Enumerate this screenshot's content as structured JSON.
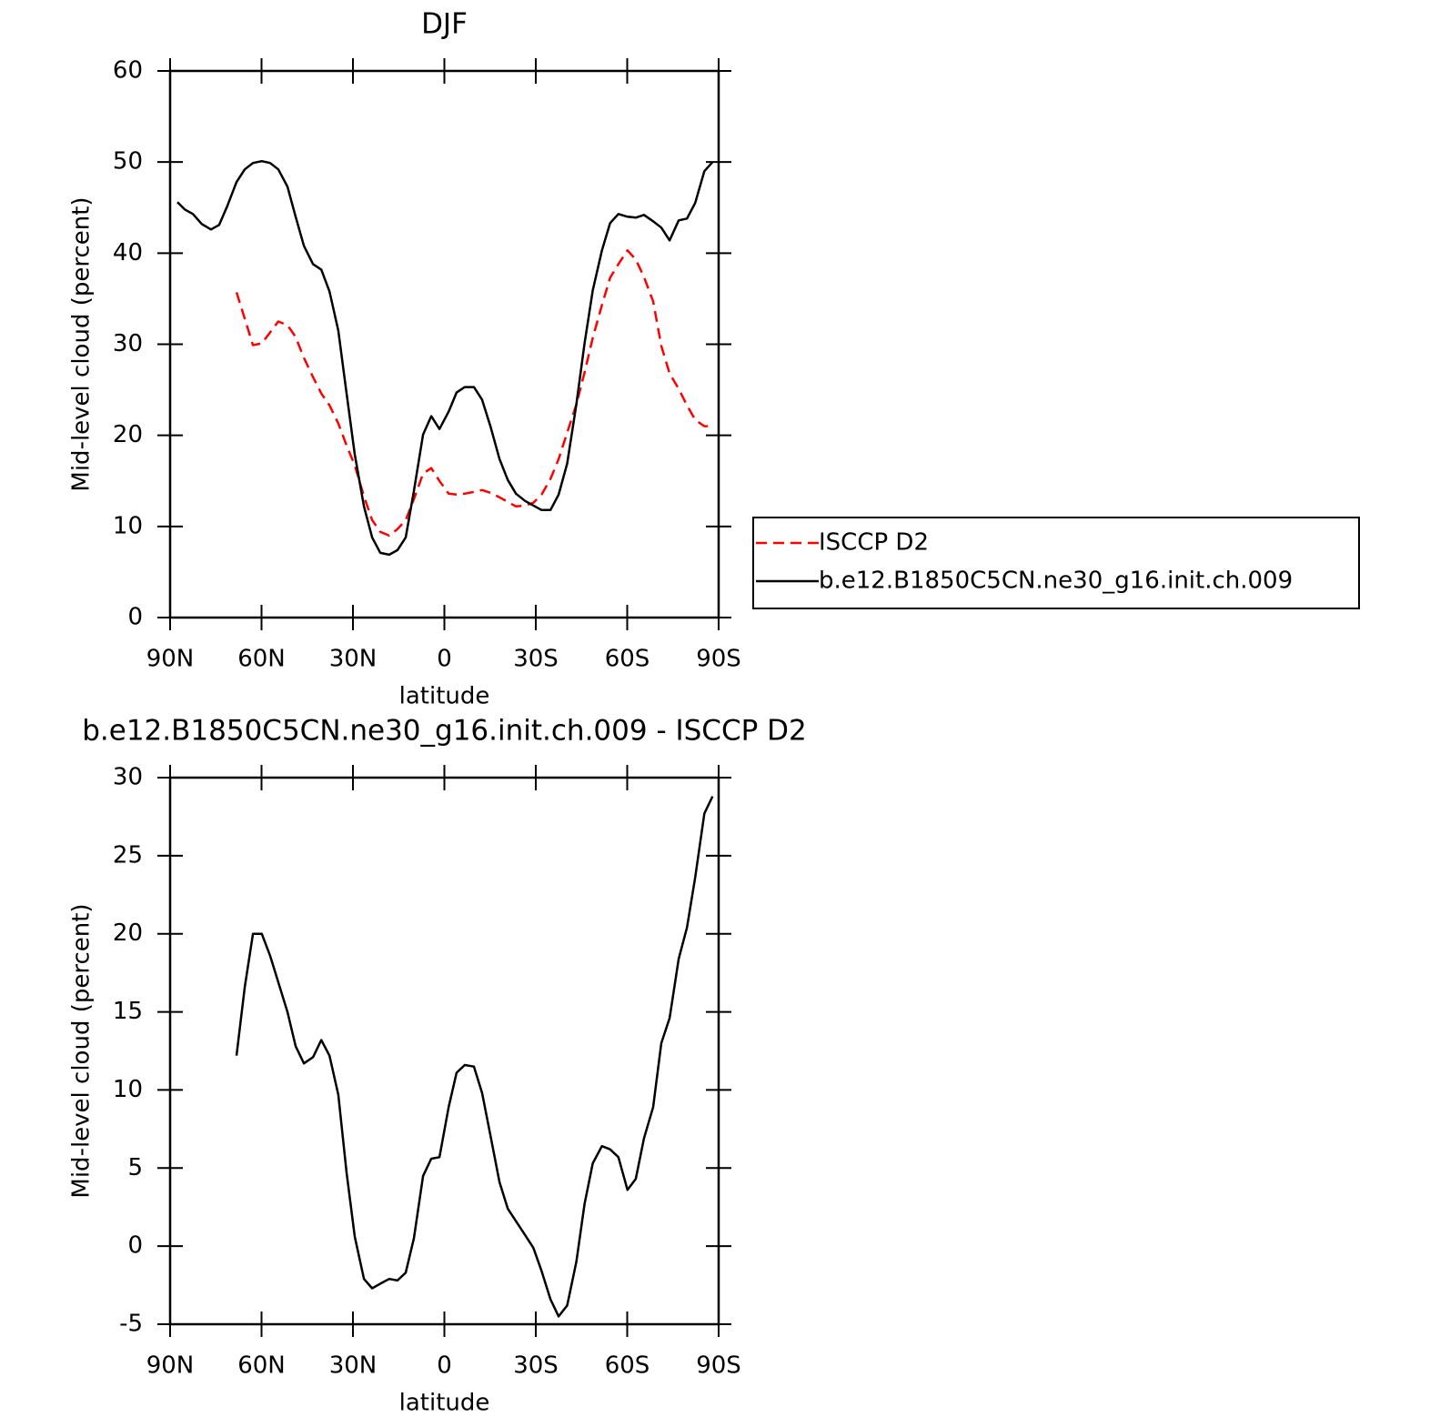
{
  "chart_data": [
    {
      "type": "line",
      "title": "DJF",
      "xlabel": "latitude",
      "ylabel": "Mid-level cloud (percent)",
      "x": [
        87.6,
        85.2,
        82.5,
        79.6,
        76.6,
        73.9,
        71.2,
        68.2,
        65.5,
        62.8,
        59.9,
        57.2,
        54.5,
        51.5,
        48.8,
        46.1,
        43.1,
        40.4,
        37.7,
        34.8,
        32.1,
        29.4,
        26.4,
        23.7,
        21.0,
        18.1,
        15.4,
        12.7,
        10.0,
        7.0,
        4.3,
        1.6,
        -1.4,
        -4.0,
        -6.7,
        -9.7,
        -12.4,
        -15.1,
        -18.1,
        -20.8,
        -23.5,
        -26.5,
        -29.2,
        -31.9,
        -34.8,
        -37.5,
        -40.3,
        -43.3,
        -46.0,
        -48.7,
        -51.7,
        -54.4,
        -57.1,
        -60.1,
        -62.8,
        -65.5,
        -68.5,
        -71.2,
        -73.9,
        -76.9,
        -79.6,
        -82.3,
        -85.3,
        -88.0
      ],
      "series": [
        {
          "name": "ISCCP D2",
          "color": "#ff0000",
          "line_style": "dashed",
          "values": [
            null,
            null,
            null,
            null,
            null,
            null,
            null,
            35.7,
            32.8,
            29.9,
            30.1,
            31.3,
            32.5,
            32.1,
            30.8,
            28.5,
            26.4,
            24.6,
            23.3,
            21.3,
            18.9,
            16.7,
            13.3,
            10.7,
            9.4,
            9.0,
            9.7,
            10.7,
            13.0,
            15.8,
            16.4,
            15.0,
            13.6,
            13.5,
            13.6,
            13.8,
            14.0,
            13.7,
            13.2,
            12.7,
            12.2,
            12.3,
            12.6,
            13.5,
            15.2,
            17.4,
            20.3,
            23.4,
            26.9,
            30.7,
            34.3,
            37.3,
            38.8,
            40.3,
            39.3,
            37.4,
            34.7,
            29.8,
            26.8,
            25.1,
            23.3,
            21.7,
            21.0,
            21.0
          ]
        },
        {
          "name": "b.e12.B1850C5CN.ne30_g16.init.ch.009",
          "color": "#000000",
          "line_style": "solid",
          "values": [
            45.6,
            44.8,
            44.3,
            43.2,
            42.6,
            43.1,
            45.2,
            47.8,
            49.2,
            49.9,
            50.1,
            49.9,
            49.2,
            47.3,
            44.0,
            40.8,
            38.8,
            38.2,
            35.8,
            31.5,
            24.6,
            17.9,
            12.2,
            8.8,
            7.1,
            6.9,
            7.4,
            8.8,
            13.9,
            20.1,
            22.1,
            20.7,
            22.6,
            24.7,
            25.3,
            25.3,
            23.9,
            21.0,
            17.4,
            15.1,
            13.6,
            12.8,
            12.3,
            11.8,
            11.8,
            13.5,
            16.9,
            23.4,
            30.1,
            35.9,
            40.3,
            43.3,
            44.3,
            44.0,
            43.9,
            44.2,
            43.5,
            42.8,
            41.4,
            43.6,
            43.8,
            45.5,
            49.0,
            50.0
          ]
        }
      ],
      "xlim": [
        90,
        -90
      ],
      "xticks": [
        {
          "value": 90,
          "label": "90N"
        },
        {
          "value": 60,
          "label": "60N"
        },
        {
          "value": 30,
          "label": "30N"
        },
        0,
        {
          "value": -30,
          "label": "30S"
        },
        {
          "value": -60,
          "label": "60S"
        },
        {
          "value": -90,
          "label": "90S"
        }
      ],
      "ylim": [
        0,
        60
      ],
      "yticks": [
        0,
        10,
        20,
        30,
        40,
        50,
        60
      ],
      "legend": "right"
    },
    {
      "type": "line",
      "title": "b.e12.B1850C5CN.ne30_g16.init.ch.009 - ISCCP D2",
      "xlabel": "latitude",
      "ylabel": "Mid-level cloud (percent)",
      "x": [
        87.6,
        85.2,
        82.5,
        79.6,
        76.6,
        73.9,
        71.2,
        68.2,
        65.5,
        62.8,
        59.9,
        57.2,
        54.5,
        51.5,
        48.8,
        46.1,
        43.1,
        40.4,
        37.7,
        34.8,
        32.1,
        29.4,
        26.4,
        23.7,
        21.0,
        18.1,
        15.4,
        12.7,
        10.0,
        7.0,
        4.3,
        1.6,
        -1.4,
        -4.0,
        -6.7,
        -9.7,
        -12.4,
        -15.1,
        -18.1,
        -20.8,
        -23.5,
        -26.5,
        -29.2,
        -31.9,
        -34.8,
        -37.5,
        -40.3,
        -43.3,
        -46.0,
        -48.7,
        -51.7,
        -54.4,
        -57.1,
        -60.1,
        -62.8,
        -65.5,
        -68.5,
        -71.2,
        -73.9,
        -76.9,
        -79.6,
        -82.3,
        -85.3,
        -88.0
      ],
      "series": [
        {
          "color": "#000000",
          "line_style": "solid",
          "values": [
            null,
            null,
            null,
            null,
            null,
            null,
            null,
            12.2,
            16.6,
            20.0,
            20.0,
            18.6,
            16.9,
            15.0,
            12.8,
            11.7,
            12.1,
            13.2,
            12.2,
            9.7,
            4.7,
            0.6,
            -2.1,
            -2.7,
            -2.4,
            -2.1,
            -2.2,
            -1.7,
            0.5,
            4.5,
            5.6,
            5.7,
            8.9,
            11.1,
            11.6,
            11.5,
            9.8,
            7.1,
            4.1,
            2.4,
            1.6,
            0.7,
            -0.1,
            -1.6,
            -3.4,
            -4.5,
            -3.8,
            -1.0,
            2.7,
            5.3,
            6.4,
            6.2,
            5.7,
            3.6,
            4.3,
            6.9,
            8.9,
            13.0,
            14.6,
            18.4,
            20.4,
            23.6,
            27.7,
            28.8
          ]
        }
      ],
      "xlim": [
        90,
        -90
      ],
      "xticks": [
        {
          "value": 90,
          "label": "90N"
        },
        {
          "value": 60,
          "label": "60N"
        },
        {
          "value": 30,
          "label": "30N"
        },
        0,
        {
          "value": -30,
          "label": "30S"
        },
        {
          "value": -60,
          "label": "60S"
        },
        {
          "value": -90,
          "label": "90S"
        }
      ],
      "ylim": [
        -5,
        30
      ],
      "yticks": [
        -5,
        0,
        5,
        10,
        15,
        20,
        25,
        30
      ]
    }
  ]
}
